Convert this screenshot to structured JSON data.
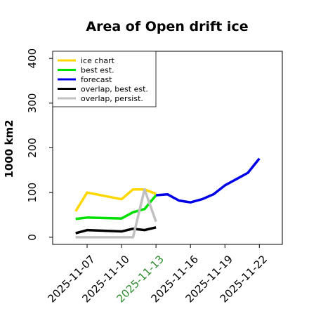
{
  "chart_data": {
    "type": "line",
    "title": "Area of Open drift ice",
    "ylabel": "1000 km2",
    "x": [
      "2025-11-06",
      "2025-11-07",
      "2025-11-10",
      "2025-11-11",
      "2025-11-12",
      "2025-11-13",
      "2025-11-14",
      "2025-11-15",
      "2025-11-16",
      "2025-11-17",
      "2025-11-18",
      "2025-11-19",
      "2025-11-20",
      "2025-11-21",
      "2025-11-22"
    ],
    "series": [
      {
        "name": "ice chart",
        "color": "#ffd700",
        "values": [
          58,
          100,
          85,
          107,
          107,
          97,
          null,
          null,
          null,
          null,
          null,
          null,
          null,
          null,
          null
        ]
      },
      {
        "name": "best est.",
        "color": "#00e000",
        "values": [
          41,
          44,
          42,
          56,
          63,
          94,
          null,
          null,
          null,
          null,
          null,
          null,
          null,
          null,
          null
        ]
      },
      {
        "name": "forecast",
        "color": "#0000e6",
        "values": [
          null,
          null,
          null,
          null,
          null,
          94,
          96,
          82,
          78,
          85,
          96,
          116,
          130,
          144,
          176
        ]
      },
      {
        "name": "overlap, best est.",
        "color": "#000000",
        "values": [
          9,
          16,
          13,
          19,
          16,
          22,
          null,
          null,
          null,
          null,
          null,
          null,
          null,
          null,
          null
        ]
      },
      {
        "name": "overlap, persist.",
        "color": "#c0c0c0",
        "values": [
          0,
          0,
          0,
          0,
          107,
          35,
          null,
          null,
          null,
          null,
          null,
          null,
          null,
          null,
          null
        ]
      }
    ],
    "xlim": [
      "2025-11-04",
      "2025-11-24"
    ],
    "xticks": [
      "2025-11-07",
      "2025-11-10",
      "2025-11-13",
      "2025-11-16",
      "2025-11-19",
      "2025-11-22"
    ],
    "highlight_xtick": 2,
    "highlight_color": "#2e8b2e",
    "ylim": [
      -16,
      416
    ],
    "yticks": [
      0,
      100,
      200,
      300,
      400
    ],
    "legend": "upper left"
  }
}
